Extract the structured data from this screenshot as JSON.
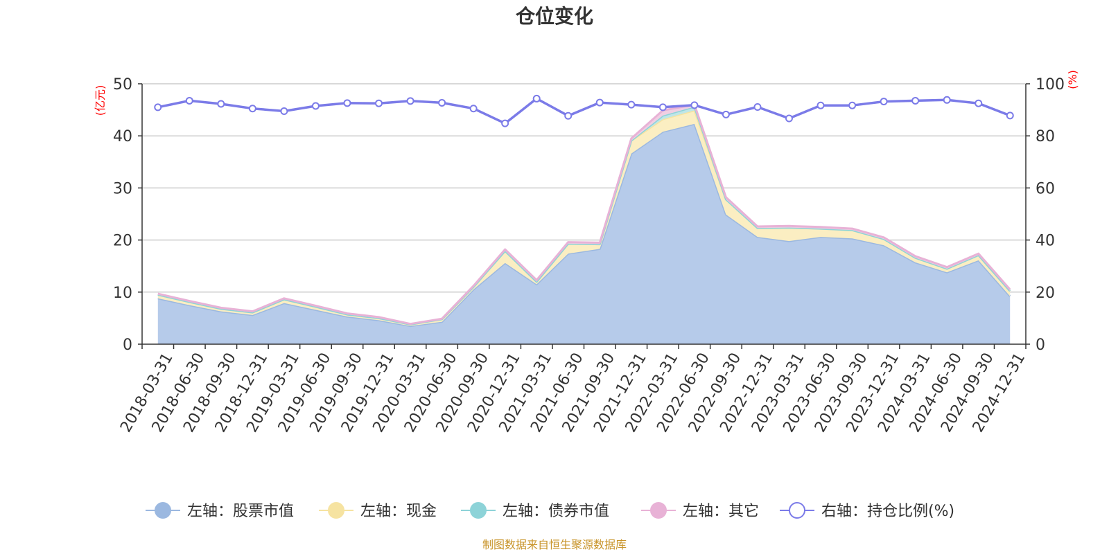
{
  "chart_data": {
    "type": "area",
    "title": "仓位变化",
    "left_axis_unit": "(亿元)",
    "right_axis_unit": "(%)",
    "categories": [
      "2018-03-31",
      "2018-06-30",
      "2018-09-30",
      "2018-12-31",
      "2019-03-31",
      "2019-06-30",
      "2019-09-30",
      "2019-12-31",
      "2020-03-31",
      "2020-06-30",
      "2020-09-30",
      "2020-12-31",
      "2021-03-31",
      "2021-06-30",
      "2021-09-30",
      "2021-12-31",
      "2022-03-31",
      "2022-06-30",
      "2022-09-30",
      "2022-12-31",
      "2023-03-31",
      "2023-06-30",
      "2023-09-30",
      "2023-12-31",
      "2024-03-31",
      "2024-06-30",
      "2024-09-30",
      "2024-12-31"
    ],
    "left_ylim": [
      0,
      50
    ],
    "left_ticks": [
      "0",
      "10",
      "20",
      "30",
      "40",
      "50"
    ],
    "right_ylim": [
      0,
      100
    ],
    "right_ticks": [
      "0",
      "20",
      "40",
      "60",
      "80",
      "100"
    ],
    "grid": true,
    "legend_position": "bottom",
    "series": [
      {
        "name": "左轴：股票市值",
        "axis": "left",
        "stack": true,
        "color": "#9bb8e0",
        "fill": "#b6cbea",
        "values": [
          8.8,
          7.5,
          6.3,
          5.6,
          7.9,
          6.6,
          5.3,
          4.6,
          3.5,
          4.3,
          10.5,
          15.6,
          11.5,
          17.4,
          18.3,
          36.6,
          40.8,
          42.3,
          24.9,
          20.6,
          19.8,
          20.6,
          20.3,
          19.0,
          15.7,
          13.8,
          16.1,
          9.2
        ]
      },
      {
        "name": "左轴：现金",
        "axis": "left",
        "stack": true,
        "color": "#f6e3a1",
        "fill": "#fbeec2",
        "values": [
          0.7,
          0.6,
          0.5,
          0.5,
          0.7,
          0.6,
          0.4,
          0.4,
          0.3,
          0.5,
          0.5,
          2.3,
          0.5,
          1.9,
          0.9,
          2.5,
          2.4,
          2.6,
          2.9,
          1.7,
          2.6,
          1.6,
          1.6,
          1.2,
          0.9,
          0.7,
          1.0,
          1.0
        ]
      },
      {
        "name": "左轴：债券市值",
        "axis": "left",
        "stack": true,
        "color": "#8dd3d8",
        "fill": "#bfe6e8",
        "values": [
          0,
          0,
          0,
          0,
          0,
          0,
          0,
          0,
          0,
          0,
          0,
          0,
          0,
          0,
          0,
          0,
          0.7,
          0.7,
          0,
          0,
          0,
          0,
          0,
          0,
          0,
          0,
          0,
          0
        ]
      },
      {
        "name": "左轴：其它",
        "axis": "left",
        "stack": true,
        "color": "#e8b2d6",
        "fill": "#f0cfe3",
        "values": [
          0.2,
          0.2,
          0.2,
          0.2,
          0.2,
          0.2,
          0.2,
          0.2,
          0.1,
          0.1,
          0.2,
          0.3,
          0.3,
          0.3,
          0.3,
          0.4,
          1.0,
          0.4,
          0.4,
          0.3,
          0.3,
          0.3,
          0.3,
          0.3,
          0.3,
          0.3,
          0.3,
          0.3
        ]
      },
      {
        "name": "右轴：持仓比例(%)",
        "axis": "right",
        "stack": false,
        "color": "#7b7be8",
        "values": [
          91,
          93.5,
          92.3,
          90.5,
          89.5,
          91.5,
          92.6,
          92.5,
          93.4,
          92.7,
          90.5,
          84.8,
          94.3,
          87.7,
          92.8,
          92,
          91,
          91.8,
          88.2,
          91.1,
          86.7,
          91.7,
          91.7,
          93.2,
          93.5,
          93.8,
          92.5,
          87.8
        ]
      }
    ],
    "source": "制图数据来自恒生聚源数据库"
  }
}
